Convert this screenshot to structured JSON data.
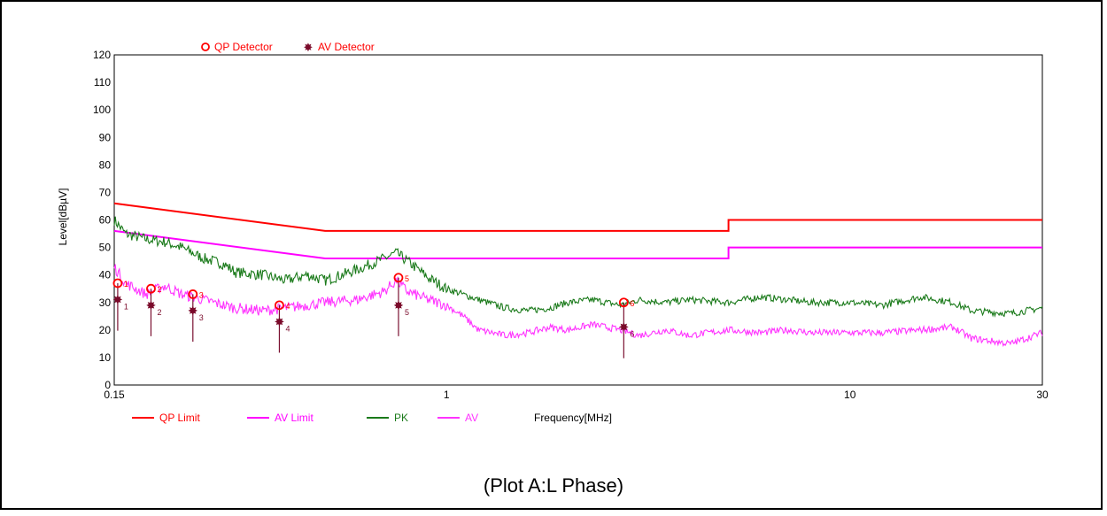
{
  "caption": "(Plot A:L Phase)",
  "colors": {
    "qp_limit": "#ff0000",
    "av_limit": "#ff00ff",
    "pk": "#1a7a1a",
    "av": "#ff33ff",
    "qp_marker": "#ff0000",
    "av_marker": "#7a0a2a",
    "stem": "#7a1030"
  },
  "chart_data": {
    "type": "line",
    "title": "",
    "xlabel": "Frequency[MHz]",
    "ylabel": "Level[dBµV]",
    "xscale": "log",
    "xlim": [
      0.15,
      30
    ],
    "ylim": [
      0,
      120
    ],
    "grid": true,
    "x_tick_labels": [
      {
        "value": 0.15,
        "label": "0.15"
      },
      {
        "value": 1,
        "label": "1"
      },
      {
        "value": 10,
        "label": "10"
      },
      {
        "value": 30,
        "label": "30"
      }
    ],
    "y_ticks": [
      0,
      10,
      20,
      30,
      40,
      50,
      60,
      70,
      80,
      90,
      100,
      110,
      120
    ],
    "top_legend": [
      {
        "name": "QP Detector",
        "symbol": "circle"
      },
      {
        "name": "AV Detector",
        "symbol": "star"
      }
    ],
    "bottom_legend": [
      "QP Limit",
      "AV Limit",
      "PK",
      "AV"
    ],
    "limits": [
      {
        "name": "QP Limit",
        "points": [
          [
            0.15,
            66
          ],
          [
            0.5,
            56
          ],
          [
            5,
            56
          ],
          [
            5,
            60
          ],
          [
            30,
            60
          ]
        ]
      },
      {
        "name": "AV Limit",
        "points": [
          [
            0.15,
            56
          ],
          [
            0.5,
            46
          ],
          [
            5,
            46
          ],
          [
            5,
            50
          ],
          [
            30,
            50
          ]
        ]
      }
    ],
    "series": [
      {
        "name": "PK",
        "points": [
          [
            0.15,
            60
          ],
          [
            0.16,
            55
          ],
          [
            0.18,
            53
          ],
          [
            0.2,
            52
          ],
          [
            0.22,
            50
          ],
          [
            0.25,
            46
          ],
          [
            0.28,
            44
          ],
          [
            0.3,
            41
          ],
          [
            0.35,
            40
          ],
          [
            0.4,
            38
          ],
          [
            0.45,
            40
          ],
          [
            0.5,
            38
          ],
          [
            0.55,
            40
          ],
          [
            0.6,
            42
          ],
          [
            0.65,
            44
          ],
          [
            0.7,
            46
          ],
          [
            0.75,
            48
          ],
          [
            0.8,
            45
          ],
          [
            0.85,
            42
          ],
          [
            0.9,
            39
          ],
          [
            1.0,
            35
          ],
          [
            1.2,
            31
          ],
          [
            1.4,
            28
          ],
          [
            1.6,
            27
          ],
          [
            1.8,
            28
          ],
          [
            2.0,
            30
          ],
          [
            2.3,
            31
          ],
          [
            2.7,
            29
          ],
          [
            3.0,
            31
          ],
          [
            3.5,
            30
          ],
          [
            4.0,
            31
          ],
          [
            5,
            30
          ],
          [
            6,
            32
          ],
          [
            7,
            31
          ],
          [
            8,
            30
          ],
          [
            10,
            30
          ],
          [
            12,
            29
          ],
          [
            15,
            32
          ],
          [
            18,
            30
          ],
          [
            20,
            27
          ],
          [
            25,
            26
          ],
          [
            30,
            28
          ]
        ]
      },
      {
        "name": "AV",
        "points": [
          [
            0.15,
            43
          ],
          [
            0.16,
            37
          ],
          [
            0.18,
            33
          ],
          [
            0.2,
            36
          ],
          [
            0.22,
            33
          ],
          [
            0.25,
            31
          ],
          [
            0.28,
            29
          ],
          [
            0.3,
            28
          ],
          [
            0.35,
            27
          ],
          [
            0.4,
            28
          ],
          [
            0.45,
            29
          ],
          [
            0.5,
            30
          ],
          [
            0.6,
            31
          ],
          [
            0.7,
            34
          ],
          [
            0.75,
            38
          ],
          [
            0.8,
            34
          ],
          [
            0.9,
            31
          ],
          [
            1.0,
            29
          ],
          [
            1.1,
            25
          ],
          [
            1.2,
            20
          ],
          [
            1.4,
            18
          ],
          [
            1.6,
            19
          ],
          [
            1.8,
            21
          ],
          [
            2.0,
            20
          ],
          [
            2.3,
            22
          ],
          [
            2.7,
            20
          ],
          [
            3.0,
            18
          ],
          [
            3.5,
            20
          ],
          [
            4.0,
            18
          ],
          [
            5,
            20
          ],
          [
            6,
            19
          ],
          [
            7,
            20
          ],
          [
            8,
            19
          ],
          [
            10,
            19
          ],
          [
            12,
            19
          ],
          [
            15,
            20
          ],
          [
            18,
            21
          ],
          [
            20,
            17
          ],
          [
            25,
            15
          ],
          [
            30,
            19
          ]
        ]
      }
    ],
    "markers": [
      {
        "id": "1",
        "freq": 0.153,
        "qp": 37,
        "av": 31
      },
      {
        "id": "2",
        "freq": 0.185,
        "qp": 35,
        "av": 29
      },
      {
        "id": "3",
        "freq": 0.235,
        "qp": 33,
        "av": 27
      },
      {
        "id": "4",
        "freq": 0.385,
        "qp": 29,
        "av": 23
      },
      {
        "id": "5",
        "freq": 0.76,
        "qp": 39,
        "av": 29
      },
      {
        "id": "6",
        "freq": 2.75,
        "qp": 30,
        "av": 21
      }
    ]
  }
}
